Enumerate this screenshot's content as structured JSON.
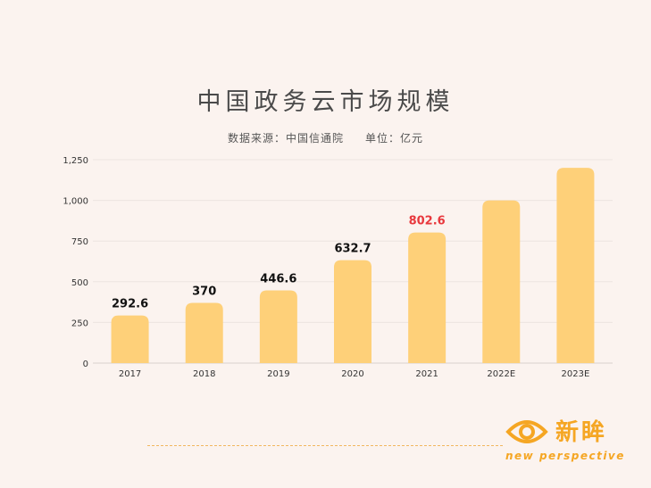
{
  "chart_data": {
    "type": "bar",
    "title": "中国政务云市场规模",
    "subtitle": "数据来源：中国信通院",
    "unit": "单位：亿元",
    "categories": [
      "2017",
      "2018",
      "2019",
      "2020",
      "2021",
      "2022E",
      "2023E"
    ],
    "values": [
      292.6,
      370,
      446.6,
      632.7,
      802.6,
      1000,
      1200
    ],
    "data_labels": [
      "292.6",
      "370",
      "446.6",
      "632.7",
      "802.6",
      "",
      ""
    ],
    "highlight_index": 4,
    "y_ticks": [
      "0",
      "250",
      "500",
      "750",
      "1,000",
      "1,250"
    ],
    "y_tick_values": [
      0,
      250,
      500,
      750,
      1000,
      1250
    ],
    "ylim": [
      0,
      1250
    ],
    "grid": true,
    "bar_color": "#fed079",
    "label_color": "#111111",
    "highlight_label_color": "#e8383d"
  },
  "brand": {
    "name": "新眸",
    "tagline": "new perspective",
    "color": "#f5a623"
  }
}
